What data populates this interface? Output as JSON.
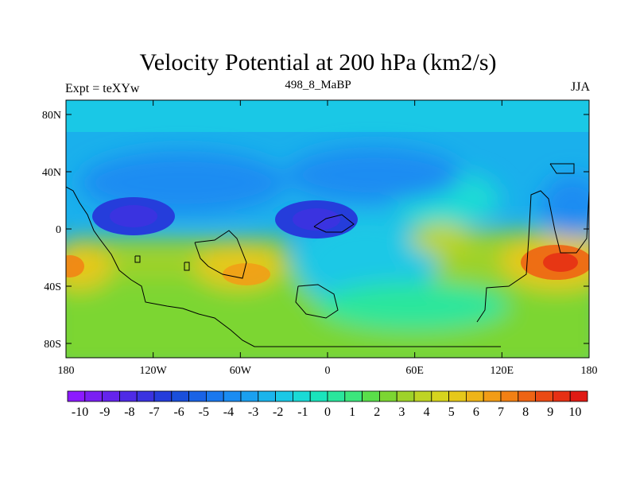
{
  "title": "Velocity Potential at 200 hPa (km2/s)",
  "left_label": "Expt = teXYw",
  "center_label": "498_8_MaBP",
  "right_label": "JJA",
  "x_ticks": [
    {
      "lon": -180,
      "label": "180"
    },
    {
      "lon": -120,
      "label": "120W"
    },
    {
      "lon": -60,
      "label": "60W"
    },
    {
      "lon": 0,
      "label": "0"
    },
    {
      "lon": 60,
      "label": "60E"
    },
    {
      "lon": 120,
      "label": "120E"
    },
    {
      "lon": 180,
      "label": "180"
    }
  ],
  "y_ticks": [
    {
      "lat": 80,
      "label": "80N"
    },
    {
      "lat": 40,
      "label": "40N"
    },
    {
      "lat": 0,
      "label": "0"
    },
    {
      "lat": -40,
      "label": "40S"
    },
    {
      "lat": -80,
      "label": "80S"
    }
  ],
  "colorbar": {
    "colors": [
      "#8c1aff",
      "#7a1ff2",
      "#6524ec",
      "#4f2be6",
      "#3a33e0",
      "#253ddb",
      "#1a4fdb",
      "#1a63e6",
      "#1a78ee",
      "#1a8cf2",
      "#1aa0f0",
      "#1ab4ec",
      "#1ac8e6",
      "#1adad6",
      "#1ae4bc",
      "#2ae69c",
      "#3ce67c",
      "#5ade4a",
      "#7cd632",
      "#9ed22a",
      "#bed424",
      "#d6d41e",
      "#e6c81a",
      "#eeb418",
      "#f29c16",
      "#f28014",
      "#ee6414",
      "#ea4a14",
      "#e63014",
      "#e01a14"
    ],
    "labels": [
      "-10",
      "-9",
      "-8",
      "-7",
      "-6",
      "-5",
      "-4",
      "-3",
      "-2",
      "-1",
      "0",
      "1",
      "2",
      "3",
      "4",
      "5",
      "6",
      "7",
      "8",
      "9",
      "10"
    ]
  }
}
